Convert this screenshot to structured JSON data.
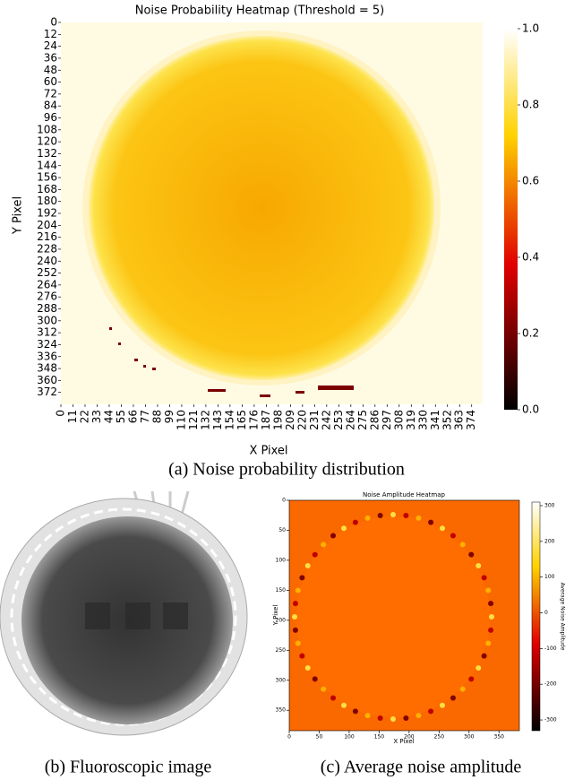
{
  "chart_data": [
    {
      "type": "heatmap",
      "title": "Noise Probability Heatmap (Threshold = 5)",
      "x_label": "X Pixel",
      "y_label": "Y Pixel",
      "xlim": [
        0,
        384
      ],
      "ylim": [
        0,
        384
      ],
      "xticks": [
        0,
        11,
        22,
        33,
        44,
        55,
        66,
        77,
        88,
        99,
        110,
        121,
        132,
        143,
        154,
        165,
        176,
        187,
        198,
        209,
        220,
        231,
        242,
        253,
        264,
        275,
        286,
        297,
        308,
        319,
        330,
        341,
        352,
        363,
        374
      ],
      "yticks": [
        0,
        12,
        24,
        36,
        48,
        60,
        72,
        84,
        96,
        108,
        120,
        132,
        144,
        156,
        168,
        180,
        192,
        204,
        216,
        228,
        240,
        252,
        264,
        276,
        288,
        300,
        312,
        324,
        336,
        348,
        360,
        372
      ],
      "colormap": "hot",
      "clim": [
        0,
        1
      ],
      "cticks": [
        {
          "value": 0,
          "label": "0.0"
        },
        0.2,
        0.4,
        0.6,
        0.8,
        {
          "value": 1,
          "label": "1.0"
        }
      ],
      "caption": "(a) Noise probability distribution"
    },
    {
      "type": "image",
      "caption": "(b) Fluoroscopic image"
    },
    {
      "type": "heatmap",
      "title": "Noise Amplitude Heatmap",
      "x_label": "X Pixel",
      "y_label": "Y Pixel",
      "colorbar_label": "Average Noise Amplitude",
      "xlim": [
        0,
        384
      ],
      "ylim": [
        0,
        384
      ],
      "xticks": [
        0,
        50,
        100,
        150,
        200,
        250,
        300,
        350
      ],
      "yticks": [
        0,
        50,
        100,
        150,
        200,
        250,
        300,
        350
      ],
      "colormap": "hot",
      "clim": [
        -330,
        310
      ],
      "cticks": [
        -300,
        -200,
        -100,
        0,
        100,
        200,
        300
      ],
      "caption": "(c) Average noise amplitude"
    }
  ]
}
